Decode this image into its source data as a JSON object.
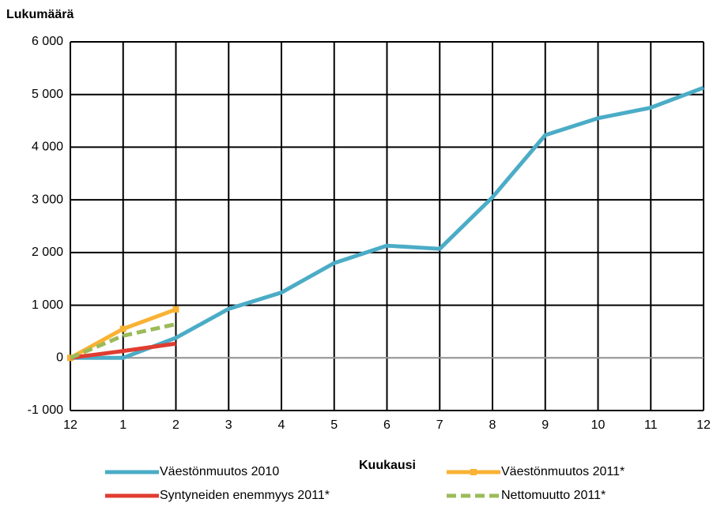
{
  "chart_data": {
    "type": "line",
    "title": "Lukumäärä",
    "x_label": "Kuukausi",
    "categories": [
      "12",
      "1",
      "2",
      "3",
      "4",
      "5",
      "6",
      "7",
      "8",
      "9",
      "10",
      "11",
      "12"
    ],
    "ylim": [
      -1000,
      6000
    ],
    "yticks": [
      {
        "value": -1000,
        "label": "-1 000"
      },
      0,
      {
        "value": 1000,
        "label": "1 000"
      },
      {
        "value": 2000,
        "label": "2 000"
      },
      {
        "value": 3000,
        "label": "3 000"
      },
      {
        "value": 4000,
        "label": "4 000"
      },
      {
        "value": 5000,
        "label": "5 000"
      },
      {
        "value": 6000,
        "label": "6 000"
      }
    ],
    "grid": true,
    "legend": "bottom",
    "series": [
      {
        "name": "Väestönmuutos 2010",
        "color": "#4bacc6",
        "values": [
          0,
          0,
          380,
          930,
          1240,
          1800,
          2130,
          2070,
          3050,
          4230,
          4550,
          4750,
          5130
        ]
      },
      {
        "name": "Väestönmuutos 2011*",
        "color": "#f9b233",
        "marker": "square",
        "values": [
          0,
          550,
          920,
          null,
          null,
          null,
          null,
          null,
          null,
          null,
          null,
          null,
          null
        ]
      },
      {
        "name": "Syntyneiden enemmyys 2011*",
        "color": "#e03c31",
        "values": [
          0,
          130,
          270,
          null,
          null,
          null,
          null,
          null,
          null,
          null,
          null,
          null,
          null
        ]
      },
      {
        "name": "Nettomuutto 2011*",
        "color": "#9bbb59",
        "dash": true,
        "values": [
          0,
          420,
          640,
          null,
          null,
          null,
          null,
          null,
          null,
          null,
          null,
          null,
          null
        ]
      }
    ]
  }
}
